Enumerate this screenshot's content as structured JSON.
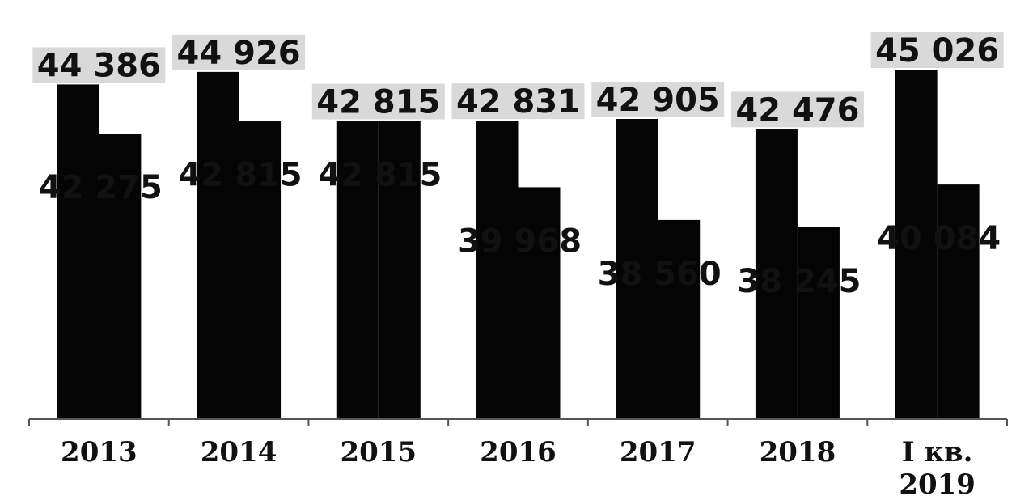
{
  "chart_data": {
    "type": "bar",
    "title": "",
    "xlabel": "",
    "ylabel": "",
    "categories": [
      "2013",
      "2014",
      "2015",
      "2016",
      "2017",
      "2018",
      "I кв. 2019"
    ],
    "series": [
      {
        "values": [
          44386,
          44926,
          42815,
          42831,
          42905,
          42476,
          45026
        ],
        "value_labels": [
          "44 386",
          "44 926",
          "42 815",
          "42 831",
          "42 905",
          "42 476",
          "45 026"
        ]
      },
      {
        "values": [
          42275,
          42815,
          42815,
          39968,
          38560,
          38245,
          40084
        ],
        "value_labels": [
          "42 275",
          "42 815",
          "42 815",
          "39 968",
          "38 560",
          "38 245",
          "40 084"
        ]
      }
    ],
    "ylim": [
      30000,
      46000
    ],
    "grid": false,
    "legend": "none",
    "colors": {
      "bar": "#050505",
      "label_background": "#d9d9d9",
      "text": "#111111"
    }
  }
}
